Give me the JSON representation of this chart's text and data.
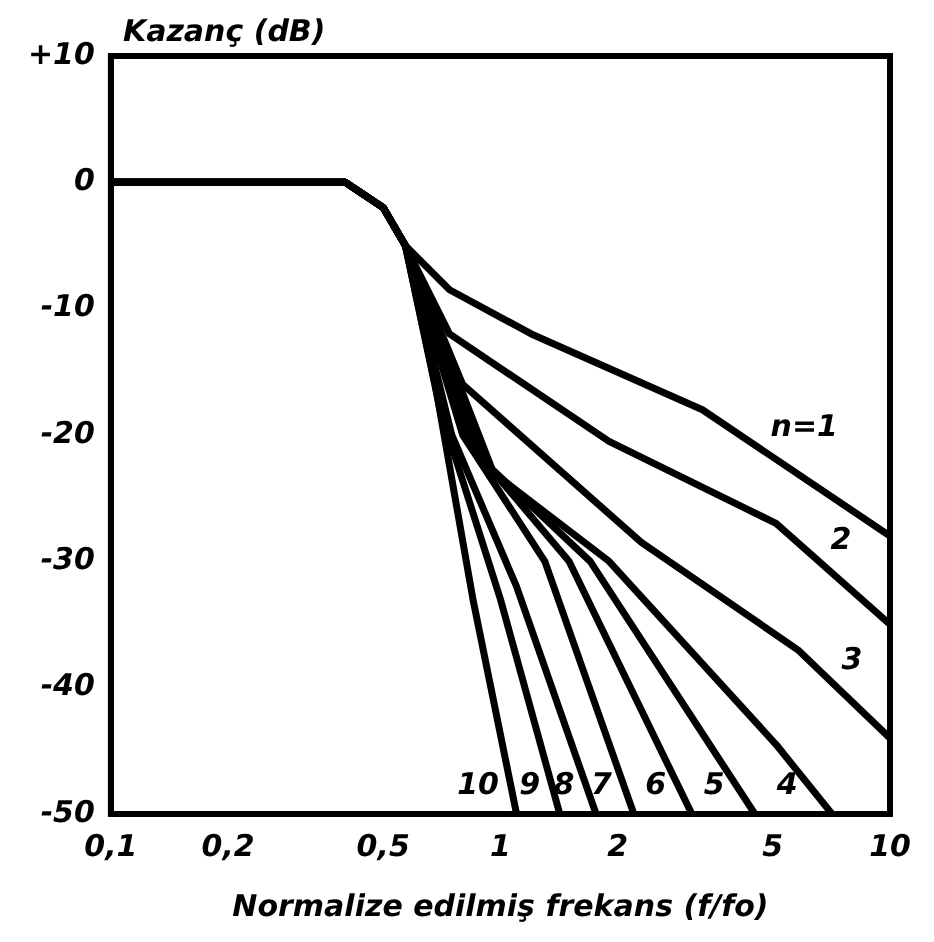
{
  "chart_data": {
    "type": "line",
    "xlabel": "Normalize edilmiş frekans (f/fo)",
    "ylabel": "Kazanç (dB)",
    "log": "x",
    "grid": false,
    "legend": false,
    "marker": "none",
    "line_style": "solid",
    "xlim": [
      0.1,
      10
    ],
    "ylim": [
      -50,
      10
    ],
    "xticks": [
      {
        "value": 0.1,
        "label": "0,1"
      },
      {
        "value": 0.2,
        "label": "0,2"
      },
      {
        "value": 0.5,
        "label": "0,5"
      },
      1,
      2,
      5,
      10
    ],
    "yticks": [
      {
        "value": 10,
        "label": "+10"
      },
      0,
      -10,
      -20,
      -30,
      -40,
      -50
    ],
    "series": [
      {
        "name": "n=1",
        "color": "#000000",
        "x": [
          0.1,
          0.4,
          0.5,
          0.57,
          0.74,
          1.2,
          3.3,
          10
        ],
        "values": [
          0,
          0,
          -2,
          -5,
          -8.5,
          -12,
          -18,
          -28
        ]
      },
      {
        "name": "2",
        "color": "#000000",
        "x": [
          0.1,
          0.4,
          0.5,
          0.57,
          0.74,
          1.9,
          5.1,
          10
        ],
        "values": [
          0,
          0,
          -2,
          -5,
          -12,
          -20.5,
          -27,
          -35
        ]
      },
      {
        "name": "3",
        "color": "#000000",
        "x": [
          0.1,
          0.4,
          0.5,
          0.57,
          0.8,
          2.3,
          5.8,
          10
        ],
        "values": [
          0,
          0,
          -2,
          -5,
          -16,
          -28.5,
          -37,
          -44
        ]
      },
      {
        "name": "4",
        "color": "#000000",
        "x": [
          0.1,
          0.4,
          0.5,
          0.57,
          0.96,
          1.9,
          5.1,
          7.1
        ],
        "values": [
          0,
          0,
          -2,
          -5,
          -23,
          -30,
          -44.5,
          -50
        ]
      },
      {
        "name": "5",
        "color": "#000000",
        "x": [
          0.1,
          0.4,
          0.5,
          0.57,
          0.9,
          1.7,
          4.5
        ],
        "values": [
          0,
          0,
          -2,
          -5,
          -22,
          -30,
          -50
        ]
      },
      {
        "name": "6",
        "color": "#000000",
        "x": [
          0.1,
          0.4,
          0.5,
          0.57,
          0.85,
          1.5,
          3.1
        ],
        "values": [
          0,
          0,
          -2,
          -5,
          -21,
          -30,
          -50
        ]
      },
      {
        "name": "7",
        "color": "#000000",
        "x": [
          0.1,
          0.4,
          0.5,
          0.57,
          0.8,
          1.3,
          2.2
        ],
        "values": [
          0,
          0,
          -2,
          -5,
          -20,
          -30,
          -50
        ]
      },
      {
        "name": "8",
        "color": "#000000",
        "x": [
          0.1,
          0.4,
          0.5,
          0.57,
          0.75,
          1.1,
          1.76
        ],
        "values": [
          0,
          0,
          -2,
          -5,
          -20,
          -32,
          -50
        ]
      },
      {
        "name": "9",
        "color": "#000000",
        "x": [
          0.1,
          0.4,
          0.5,
          0.57,
          0.7,
          1.0,
          1.42
        ],
        "values": [
          0,
          0,
          -2,
          -5,
          -18,
          -33,
          -50
        ]
      },
      {
        "name": "10",
        "color": "#000000",
        "x": [
          0.1,
          0.4,
          0.5,
          0.57,
          0.68,
          0.85,
          1.1
        ],
        "values": [
          0,
          0,
          -2,
          -5,
          -16,
          -33,
          -50
        ]
      }
    ]
  }
}
